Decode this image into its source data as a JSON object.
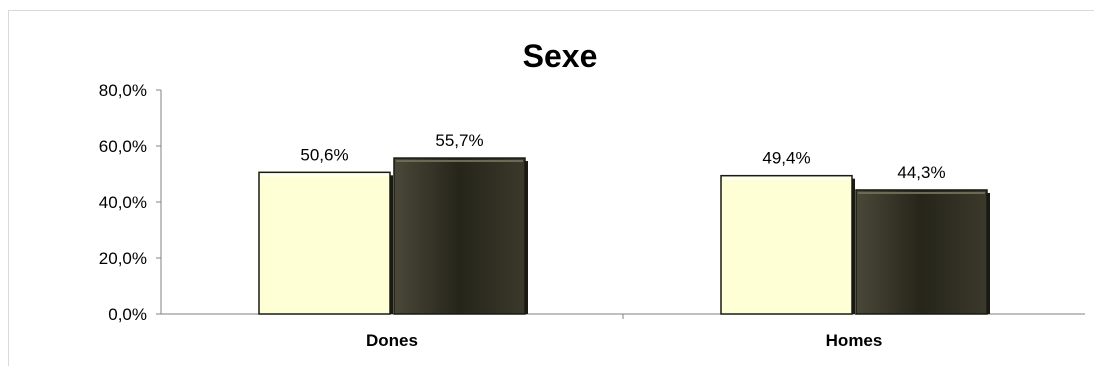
{
  "chart_data": {
    "type": "bar",
    "title": "Sexe",
    "categories": [
      "Dones",
      "Homes"
    ],
    "series": [
      {
        "values": [
          50.6,
          49.4
        ],
        "labels": [
          "50,6%",
          "49,4%"
        ],
        "color": "#ffffd6"
      },
      {
        "values": [
          55.7,
          44.3
        ],
        "labels": [
          "55,7%",
          "44,3%"
        ],
        "color": "#2b2a1e"
      }
    ],
    "yticks": [
      "0,0%",
      "20,0%",
      "40,0%",
      "60,0%",
      "80,0%"
    ],
    "ylim": [
      0,
      80
    ],
    "grid": false,
    "legend": "none"
  }
}
